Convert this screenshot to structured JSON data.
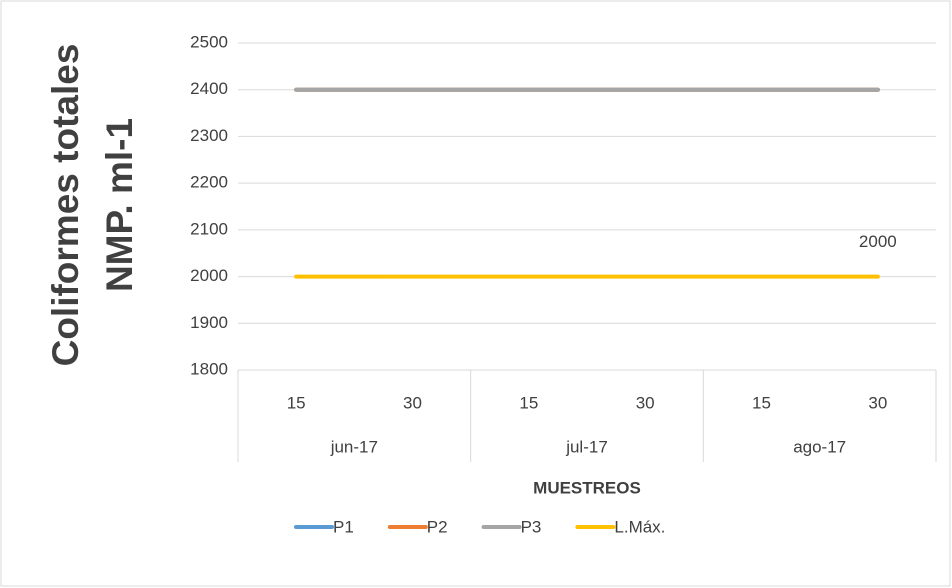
{
  "chart_data": {
    "type": "line",
    "ylabel": [
      "Coliformes totales",
      "NMP. ml-1"
    ],
    "xlabel": "MUESTREOS",
    "categories": [
      "15",
      "30",
      "15",
      "30",
      "15",
      "30"
    ],
    "category_groups": [
      "jun-17",
      "jul-17",
      "ago-17"
    ],
    "ylim": [
      1800,
      2500
    ],
    "yticks": [
      1800,
      1900,
      2000,
      2100,
      2200,
      2300,
      2400,
      2500
    ],
    "grid": true,
    "legend": "bottom",
    "series": [
      {
        "name": "P1",
        "color": "#5b9bd5",
        "values": [
          2400,
          2400,
          2400,
          2400,
          2400,
          2400
        ]
      },
      {
        "name": "P2",
        "color": "#ed7d31",
        "values": [
          2400,
          2400,
          2400,
          2400,
          2400,
          2400
        ]
      },
      {
        "name": "P3",
        "color": "#a5a5a5",
        "values": [
          2400,
          2400,
          2400,
          2400,
          2400,
          2400
        ]
      },
      {
        "name": "L.Máx.",
        "color": "#ffc000",
        "values": [
          2000,
          2000,
          2000,
          2000,
          2000,
          2000
        ],
        "value_labels": [
          null,
          null,
          null,
          null,
          null,
          "2000"
        ]
      }
    ]
  }
}
